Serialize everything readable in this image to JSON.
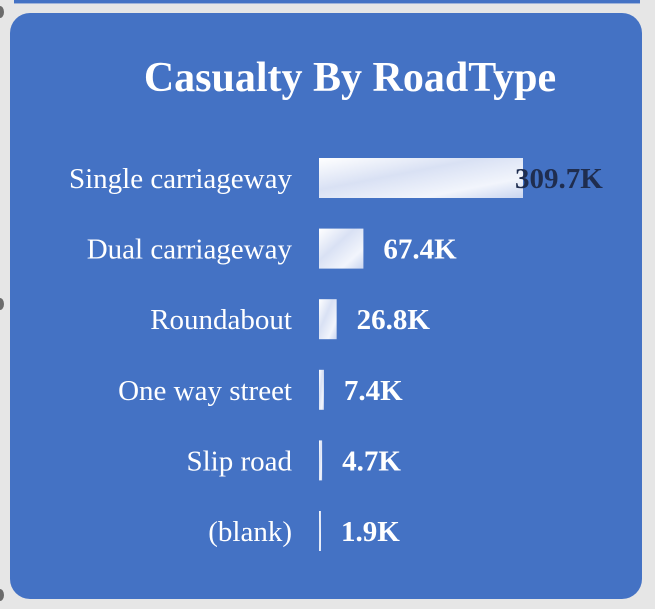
{
  "chart_data": {
    "type": "bar",
    "orientation": "horizontal",
    "title": "Casualty By RoadType",
    "categories": [
      "Single carriageway",
      "Dual carriageway",
      "Roundabout",
      "One way street",
      "Slip road",
      "(blank)"
    ],
    "values": [
      309700,
      67400,
      26800,
      7400,
      4700,
      1900
    ],
    "value_labels": [
      "309.7K",
      "67.4K",
      "26.8K",
      "7.4K",
      "4.7K",
      "1.9K"
    ],
    "xlabel": "",
    "ylabel": "",
    "grid": false,
    "colors": {
      "background": "#4472c4",
      "bar": "#dfe6f7",
      "text": "#ffffff"
    }
  }
}
